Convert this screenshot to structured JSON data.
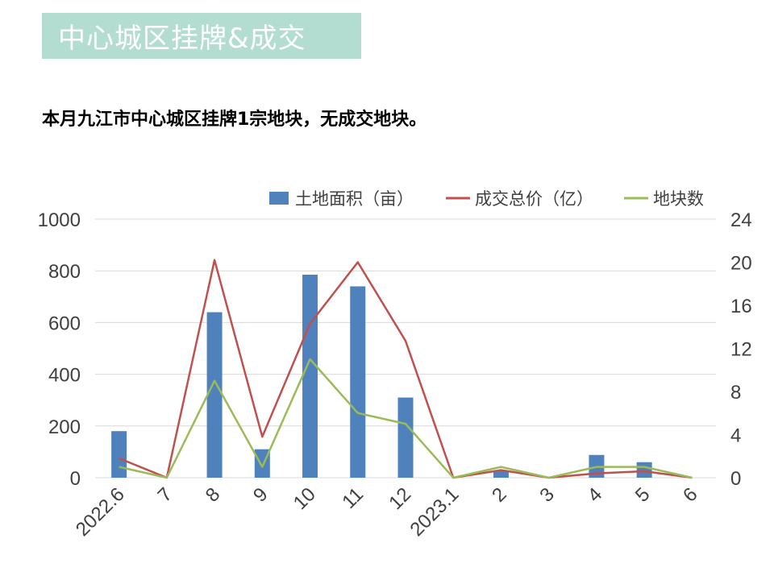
{
  "header": {
    "title": "中心城区挂牌&成交",
    "summary": "本月九江市中心城区挂牌1宗地块，无成交地块。"
  },
  "colors": {
    "title_bg": "#b3ddd0",
    "area": "#4f81bd",
    "price": "#c0504d",
    "count": "#9bbb59",
    "grid": "#d9d9d9",
    "axis_text": "#404040"
  },
  "chart_data": {
    "type": "bar",
    "categories": [
      "2022.6",
      "7",
      "8",
      "9",
      "10",
      "11",
      "12",
      "2023.1",
      "2",
      "3",
      "4",
      "5",
      "6"
    ],
    "ylim_left": [
      0,
      1000
    ],
    "yticks_left": [
      "0",
      "200",
      "400",
      "600",
      "800",
      "1000"
    ],
    "ylim_right": [
      0,
      24
    ],
    "yticks_right": [
      "0",
      "4",
      "8",
      "12",
      "16",
      "20",
      "24"
    ],
    "grid": true,
    "legend_position": "top-right",
    "series": [
      {
        "name": "土地面积（亩）",
        "type": "bar",
        "axis": "left",
        "values": [
          180,
          0,
          640,
          110,
          785,
          740,
          310,
          0,
          25,
          0,
          88,
          60,
          0
        ]
      },
      {
        "name": "成交总价（亿）",
        "type": "line",
        "axis": "right",
        "values": [
          1.8,
          0,
          20.2,
          3.8,
          14.3,
          20,
          12.7,
          0,
          0.7,
          0,
          0.4,
          0.6,
          0
        ]
      },
      {
        "name": "地块数",
        "type": "line",
        "axis": "right",
        "values": [
          1,
          0,
          9,
          1,
          11,
          6,
          5,
          0,
          1,
          0,
          1,
          1,
          0
        ]
      }
    ]
  }
}
